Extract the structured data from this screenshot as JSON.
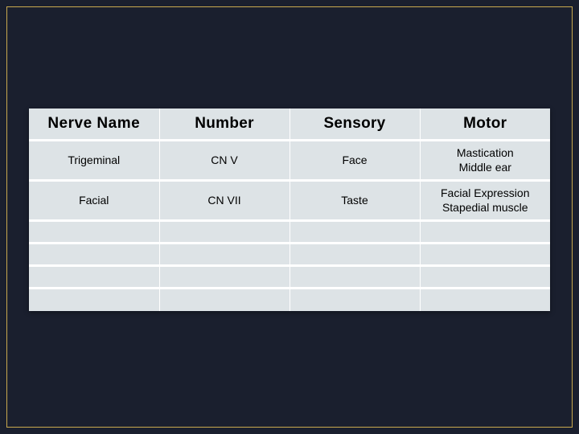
{
  "slide": {
    "background_color": "#1a1f2e",
    "frame_border_color": "#c9a94f"
  },
  "table": {
    "type": "table",
    "header_bg": "#dde3e6",
    "cell_bg": "#dde3e6",
    "border_color": "#ffffff",
    "header_fontsize": 19,
    "cell_fontsize": 14,
    "text_color": "#000000",
    "columns": [
      "Nerve Name",
      "Number",
      "Sensory",
      "Motor"
    ],
    "rows": [
      [
        "Trigeminal",
        "CN V",
        "Face",
        "Mastication\nMiddle ear"
      ],
      [
        "Facial",
        "CN VII",
        "Taste",
        "Facial Expression\nStapedial muscle"
      ],
      [
        "",
        "",
        "",
        ""
      ],
      [
        "",
        "",
        "",
        ""
      ],
      [
        "",
        "",
        "",
        ""
      ],
      [
        "",
        "",
        "",
        ""
      ]
    ]
  }
}
